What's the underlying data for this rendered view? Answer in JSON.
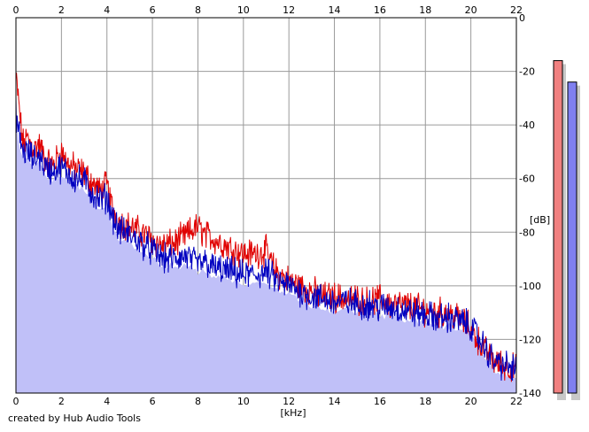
{
  "chart_data": {
    "type": "line",
    "title": "",
    "xlabel": "[kHz]",
    "ylabel": "[dB]",
    "xlim": [
      0,
      22
    ],
    "ylim": [
      -140,
      0
    ],
    "x_ticks": [
      0,
      2,
      4,
      6,
      8,
      10,
      12,
      14,
      16,
      18,
      20,
      22
    ],
    "y_ticks": [
      0,
      -20,
      -40,
      -60,
      -80,
      -100,
      -120,
      -140
    ],
    "grid": true,
    "series": [
      {
        "color": "#e00000",
        "x": [
          0,
          0.1,
          0.3,
          0.5,
          0.8,
          1.0,
          1.3,
          1.6,
          2.0,
          2.3,
          2.6,
          3.0,
          3.4,
          3.7,
          4.0,
          4.2,
          4.5,
          5.0,
          5.5,
          6.0,
          6.5,
          7.0,
          7.5,
          7.8,
          8.0,
          8.3,
          8.6,
          9.0,
          9.5,
          10.0,
          10.5,
          11.0,
          11.3,
          11.6,
          12.0,
          12.5,
          13.0,
          13.5,
          14.0,
          14.5,
          15.0,
          15.5,
          16.0,
          16.5,
          17.0,
          17.5,
          18.0,
          18.5,
          19.0,
          19.5,
          20.0,
          20.3,
          20.6,
          21.0,
          21.5,
          22.0
        ],
        "y": [
          -22,
          -30,
          -47,
          -45,
          -49,
          -47,
          -53,
          -55,
          -50,
          -55,
          -56,
          -58,
          -62,
          -65,
          -62,
          -70,
          -76,
          -78,
          -80,
          -83,
          -85,
          -84,
          -81,
          -79,
          -78,
          -81,
          -82,
          -84,
          -86,
          -88,
          -88,
          -87,
          -93,
          -96,
          -98,
          -100,
          -102,
          -104,
          -104,
          -105,
          -105,
          -106,
          -105,
          -107,
          -107,
          -108,
          -109,
          -110,
          -110,
          -112,
          -116,
          -120,
          -124,
          -128,
          -130,
          -131
        ]
      },
      {
        "color": "#0000c0",
        "x": [
          0,
          0.1,
          0.3,
          0.5,
          0.8,
          1.0,
          1.3,
          1.6,
          2.0,
          2.3,
          2.6,
          3.0,
          3.4,
          3.7,
          4.0,
          4.2,
          4.5,
          5.0,
          5.5,
          6.0,
          6.5,
          7.0,
          7.5,
          7.8,
          8.0,
          8.3,
          8.6,
          9.0,
          9.5,
          10.0,
          10.5,
          11.0,
          11.3,
          11.6,
          12.0,
          12.5,
          13.0,
          13.5,
          14.0,
          14.5,
          15.0,
          15.5,
          16.0,
          16.5,
          17.0,
          17.5,
          18.0,
          18.5,
          19.0,
          19.5,
          20.0,
          20.3,
          20.6,
          21.0,
          21.5,
          22.0
        ],
        "y": [
          -35,
          -42,
          -50,
          -50,
          -53,
          -51,
          -56,
          -57,
          -56,
          -58,
          -60,
          -61,
          -66,
          -68,
          -67,
          -73,
          -79,
          -81,
          -84,
          -87,
          -90,
          -90,
          -89,
          -91,
          -92,
          -91,
          -93,
          -94,
          -95,
          -96,
          -96,
          -95,
          -97,
          -99,
          -100,
          -102,
          -104,
          -105,
          -106,
          -106,
          -107,
          -107,
          -108,
          -108,
          -109,
          -110,
          -111,
          -112,
          -112,
          -113,
          -115,
          -119,
          -123,
          -128,
          -130,
          -131
        ]
      }
    ]
  },
  "meters": {
    "left_color": "#f08080",
    "right_color": "#8080f0",
    "left_db": -16,
    "right_db": -24
  },
  "footer": {
    "credit": "created by Hub Audio Tools"
  }
}
